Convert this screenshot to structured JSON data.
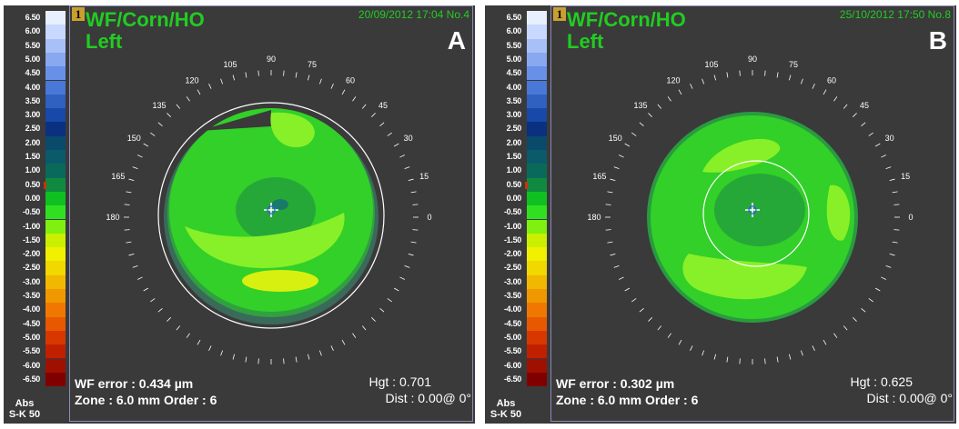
{
  "scale": {
    "labels": [
      "6.50",
      "6.00",
      "5.50",
      "5.00",
      "4.50",
      "4.00",
      "3.50",
      "3.00",
      "2.50",
      "2.00",
      "1.50",
      "1.00",
      "0.50",
      "0.00",
      "-0.50",
      "-1.00",
      "-1.50",
      "-2.00",
      "-2.50",
      "-3.00",
      "-3.50",
      "-4.00",
      "-4.50",
      "-5.00",
      "-5.50",
      "-6.00",
      "-6.50"
    ],
    "colors": [
      "#e8f0ff",
      "#c8d8ff",
      "#a8c0f8",
      "#88a8f0",
      "#6890e8",
      "#4878d8",
      "#3060c0",
      "#1848a8",
      "#0a3080",
      "#0a4a6a",
      "#0a5a6a",
      "#0a6a5a",
      "#108a40",
      "#10c020",
      "#30e020",
      "#80f010",
      "#c8f000",
      "#f0f000",
      "#f0d800",
      "#f0b800",
      "#f09800",
      "#f07800",
      "#e85800",
      "#d83800",
      "#c02000",
      "#a01000",
      "#800000"
    ],
    "abs": "Abs",
    "sk": "S-K 50"
  },
  "panels": [
    {
      "badge": "1",
      "title": "WF/Corn/HO",
      "eye": "Left",
      "date": "20/09/2012 17:04 No.4",
      "letter": "A",
      "wf_error": "WF error :  0.434 µm",
      "zone": "Zone : 6.0 mm Order  :  6",
      "hgt": "Hgt :  0.701",
      "dist": "Dist :  0.00@  0°"
    },
    {
      "badge": "1",
      "title": "WF/Corn/HO",
      "eye": "Left",
      "date": "25/10/2012 17:50 No.8",
      "letter": "B",
      "wf_error": "WF error :  0.302 µm",
      "zone": "Zone : 6.0 mm Order  :  6",
      "hgt": "Hgt :  0.625",
      "dist": "Dist :  0.00@  0°"
    }
  ],
  "angles": [
    "0",
    "15",
    "30",
    "45",
    "60",
    "75",
    "90",
    "105",
    "120",
    "135",
    "150",
    "165",
    "180"
  ],
  "colors": {
    "background": "#3a3a3a",
    "map_green": "#22cc22",
    "frame": "#8a8ab8"
  }
}
